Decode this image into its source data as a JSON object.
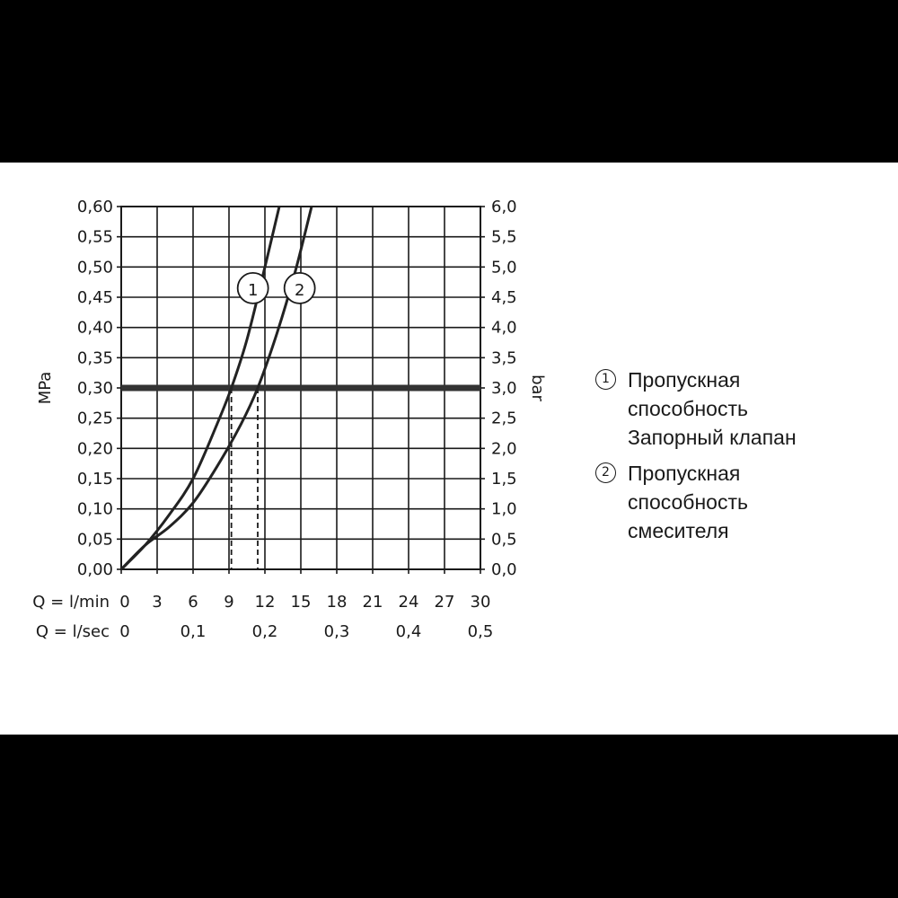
{
  "chart_data": {
    "type": "line",
    "x_axis_rows": [
      {
        "label": "Q = l/min",
        "ticks": [
          "0",
          "3",
          "6",
          "9",
          "12",
          "15",
          "18",
          "21",
          "24",
          "27",
          "30"
        ],
        "values": [
          0,
          3,
          6,
          9,
          12,
          15,
          18,
          21,
          24,
          27,
          30
        ]
      },
      {
        "label": "Q = l/sec",
        "ticks": [
          "0",
          "0,1",
          "0,2",
          "0,3",
          "0,4",
          "0,5"
        ],
        "values": [
          0,
          6,
          12,
          18,
          24,
          30
        ]
      }
    ],
    "xlim": [
      0,
      30
    ],
    "y_left": {
      "label": "MPa",
      "ticks": [
        "0,00",
        "0,05",
        "0,10",
        "0,15",
        "0,20",
        "0,25",
        "0,30",
        "0,35",
        "0,40",
        "0,45",
        "0,50",
        "0,55",
        "0,60"
      ],
      "ylim": [
        0,
        0.6
      ]
    },
    "y_right": {
      "label": "bar",
      "ticks": [
        "0,0",
        "0,5",
        "1,0",
        "1,5",
        "2,0",
        "2,5",
        "3,0",
        "3,5",
        "4,0",
        "4,5",
        "5,0",
        "5,5",
        "6,0"
      ],
      "ylim": [
        0,
        6
      ]
    },
    "grid": true,
    "series": [
      {
        "marker": "1",
        "x": [
          0,
          2,
          4,
          6,
          8,
          9.2,
          10.5,
          12,
          13.2
        ],
        "y": [
          0,
          0.04,
          0.09,
          0.15,
          0.24,
          0.3,
          0.38,
          0.5,
          0.6
        ]
      },
      {
        "marker": "2",
        "x": [
          0,
          2,
          4,
          6,
          8,
          10,
          11.4,
          13,
          14.5,
          15.9
        ],
        "y": [
          0,
          0.04,
          0.07,
          0.11,
          0.17,
          0.24,
          0.3,
          0.39,
          0.49,
          0.6
        ]
      }
    ],
    "reference_line": {
      "y": 0.3
    },
    "drop_lines": [
      {
        "x": 9.2,
        "y": 0.3
      },
      {
        "x": 11.4,
        "y": 0.3
      }
    ],
    "curve_labels": [
      {
        "text": "1",
        "x": 11.0,
        "y": 0.465
      },
      {
        "text": "2",
        "x": 14.9,
        "y": 0.465
      }
    ],
    "legend": {
      "placement": "right",
      "items": [
        {
          "marker": "1",
          "lines": [
            "Пропускная",
            "способность",
            "Запорный клапан"
          ]
        },
        {
          "marker": "2",
          "lines": [
            "Пропускная",
            "способность",
            "смесителя"
          ]
        }
      ]
    }
  }
}
